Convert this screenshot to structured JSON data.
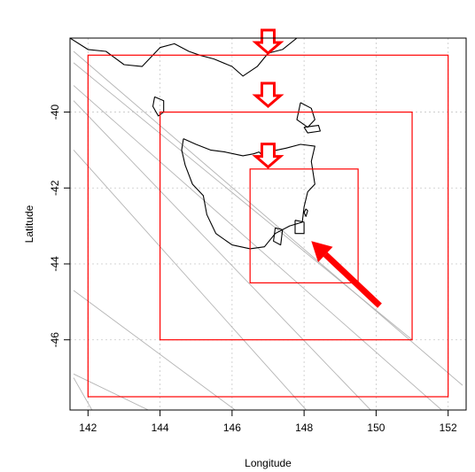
{
  "chart_data": {
    "type": "map",
    "xlabel": "Longitude",
    "ylabel": "Latitude",
    "xlim": [
      141.5,
      152.5
    ],
    "ylim": [
      -47.85,
      -38.05
    ],
    "xticks": [
      142,
      144,
      146,
      148,
      150,
      152
    ],
    "yticks": [
      -40,
      -42,
      -44,
      -46
    ],
    "grid": true,
    "domain_boxes": [
      {
        "lon": [
          142,
          152
        ],
        "lat": [
          -47.5,
          -38.5
        ],
        "color": "#ff0000"
      },
      {
        "lon": [
          144,
          151
        ],
        "lat": [
          -46,
          -40
        ],
        "color": "#ff0000"
      },
      {
        "lon": [
          146.5,
          149.5
        ],
        "lat": [
          -44.5,
          -41.5
        ],
        "color": "#ff0000"
      }
    ],
    "track_lines": [
      {
        "from": [
          141.6,
          -41.0
        ],
        "to": [
          148.2,
          -48.0
        ]
      },
      {
        "from": [
          141.6,
          -39.7
        ],
        "to": [
          150.0,
          -48.0
        ]
      },
      {
        "from": [
          141.6,
          -39.3
        ],
        "to": [
          152.0,
          -48.0
        ]
      },
      {
        "from": [
          141.6,
          -38.7
        ],
        "to": [
          151.0,
          -46.0
        ]
      },
      {
        "from": [
          141.6,
          -38.4
        ],
        "to": [
          152.4,
          -47.2
        ]
      },
      {
        "from": [
          141.6,
          -44.7
        ],
        "to": [
          146.3,
          -48.0
        ]
      },
      {
        "from": [
          141.6,
          -46.9
        ],
        "to": [
          144.0,
          -48.0
        ]
      },
      {
        "from": [
          141.6,
          -47.0
        ],
        "to": [
          142.2,
          -48.0
        ]
      }
    ],
    "down_arrows": [
      {
        "lon": 147.0,
        "lat": -38.4
      },
      {
        "lon": 147.0,
        "lat": -39.8
      },
      {
        "lon": 147.0,
        "lat": -41.4
      }
    ],
    "pointer_arrow": {
      "from": [
        150.1,
        -45.1
      ],
      "to": [
        148.2,
        -43.4
      ],
      "color": "#ff0000"
    },
    "coastline": {
      "tasmania": [
        [
          144.65,
          -40.7
        ],
        [
          145.0,
          -40.85
        ],
        [
          145.4,
          -41.0
        ],
        [
          145.8,
          -41.05
        ],
        [
          146.3,
          -41.15
        ],
        [
          146.6,
          -41.1
        ],
        [
          146.75,
          -41.05
        ],
        [
          146.85,
          -41.15
        ],
        [
          147.0,
          -41.05
        ],
        [
          147.5,
          -40.95
        ],
        [
          147.9,
          -40.85
        ],
        [
          148.3,
          -40.9
        ],
        [
          148.2,
          -41.3
        ],
        [
          148.3,
          -41.9
        ],
        [
          148.1,
          -42.1
        ],
        [
          148.0,
          -42.5
        ],
        [
          147.95,
          -42.9
        ],
        [
          147.6,
          -43.0
        ],
        [
          147.2,
          -43.2
        ],
        [
          146.9,
          -43.55
        ],
        [
          146.5,
          -43.6
        ],
        [
          146.0,
          -43.5
        ],
        [
          145.55,
          -43.2
        ],
        [
          145.3,
          -42.7
        ],
        [
          145.2,
          -42.2
        ],
        [
          144.9,
          -41.9
        ],
        [
          144.7,
          -41.4
        ],
        [
          144.6,
          -41.0
        ],
        [
          144.65,
          -40.7
        ]
      ],
      "mainland": [
        [
          141.5,
          -38.05
        ],
        [
          142.0,
          -38.35
        ],
        [
          142.5,
          -38.4
        ],
        [
          143.0,
          -38.75
        ],
        [
          143.5,
          -38.8
        ],
        [
          144.0,
          -38.3
        ],
        [
          144.4,
          -38.2
        ],
        [
          144.8,
          -38.4
        ],
        [
          145.1,
          -38.5
        ],
        [
          145.5,
          -38.6
        ],
        [
          146.0,
          -38.8
        ],
        [
          146.3,
          -39.05
        ],
        [
          146.7,
          -38.8
        ],
        [
          147.0,
          -38.45
        ],
        [
          147.4,
          -38.35
        ],
        [
          147.8,
          -38.05
        ]
      ],
      "king_island": [
        [
          143.85,
          -39.6
        ],
        [
          144.1,
          -39.7
        ],
        [
          144.1,
          -40.0
        ],
        [
          143.95,
          -40.1
        ],
        [
          143.8,
          -39.85
        ],
        [
          143.85,
          -39.6
        ]
      ],
      "flinders_island": [
        [
          147.9,
          -39.75
        ],
        [
          148.2,
          -39.9
        ],
        [
          148.3,
          -40.2
        ],
        [
          148.1,
          -40.4
        ],
        [
          147.8,
          -40.2
        ],
        [
          147.9,
          -39.75
        ]
      ],
      "cape_barren_island": [
        [
          148.0,
          -40.4
        ],
        [
          148.4,
          -40.35
        ],
        [
          148.45,
          -40.5
        ],
        [
          148.1,
          -40.55
        ],
        [
          148.0,
          -40.4
        ]
      ],
      "bruny_island": [
        [
          147.2,
          -43.05
        ],
        [
          147.4,
          -43.1
        ],
        [
          147.35,
          -43.5
        ],
        [
          147.15,
          -43.4
        ],
        [
          147.2,
          -43.05
        ]
      ],
      "tasman_peninsula": [
        [
          147.75,
          -42.85
        ],
        [
          148.0,
          -42.9
        ],
        [
          148.0,
          -43.2
        ],
        [
          147.75,
          -43.2
        ],
        [
          147.75,
          -42.85
        ]
      ],
      "maria_island": [
        [
          148.05,
          -42.55
        ],
        [
          148.1,
          -42.6
        ],
        [
          148.05,
          -42.75
        ],
        [
          148.0,
          -42.65
        ],
        [
          148.05,
          -42.55
        ]
      ]
    }
  }
}
